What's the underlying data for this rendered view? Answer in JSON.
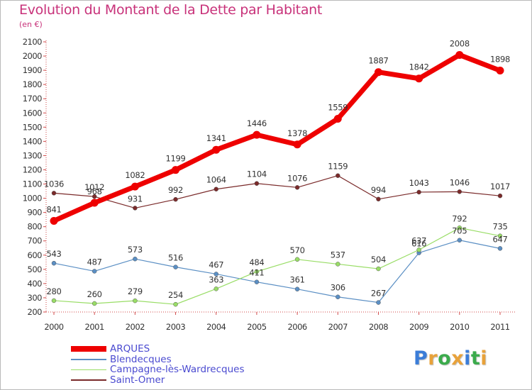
{
  "title": "Evolution du Montant de la Dette par Habitant",
  "subtitle": "(en €)",
  "logo": {
    "text": "Proxiti",
    "letters": [
      "P",
      "r",
      "o",
      "x",
      "i",
      "t",
      "i"
    ],
    "colors": [
      "#3b7dd8",
      "#e8a23a",
      "#3bab4c",
      "#e8a23a",
      "#3b7dd8",
      "#3bab4c",
      "#e8a23a"
    ]
  },
  "chart_data": {
    "type": "line",
    "x": [
      "2000",
      "2001",
      "2002",
      "2003",
      "2004",
      "2005",
      "2006",
      "2007",
      "2008",
      "2009",
      "2010",
      "2011"
    ],
    "ylim": [
      200,
      2100
    ],
    "yticks": [
      "200",
      "300",
      "400",
      "500",
      "600",
      "700",
      "800",
      "900",
      "1000",
      "1100",
      "1200",
      "1300",
      "1400",
      "1500",
      "1600",
      "1700",
      "1800",
      "1900",
      "2000",
      "2100"
    ],
    "grid": false,
    "legend_position": "bottom-left",
    "series": [
      {
        "name": "Saint-Omer",
        "color": "#7a2a2a",
        "values": [
          1036,
          1012,
          931,
          992,
          1064,
          1104,
          1076,
          1159,
          994,
          1043,
          1046,
          1017
        ]
      },
      {
        "name": "Blendecques",
        "color": "#5b8fc4",
        "values": [
          543,
          487,
          573,
          516,
          467,
          411,
          361,
          306,
          267,
          616,
          705,
          647
        ]
      },
      {
        "name": "Campagne-lès-Wardrecques",
        "color": "#99dd66",
        "values": [
          280,
          260,
          279,
          254,
          363,
          484,
          570,
          537,
          504,
          637,
          792,
          735
        ]
      },
      {
        "name": "ARQUES",
        "color": "#ee0000",
        "values": [
          841,
          968,
          1082,
          1199,
          1341,
          1446,
          1378,
          1559,
          1887,
          1842,
          2008,
          1898
        ]
      }
    ]
  },
  "legend": [
    {
      "label": "ARQUES",
      "color": "#ee0000",
      "thick": true
    },
    {
      "label": "Blendecques",
      "color": "#5b8fc4",
      "thick": false
    },
    {
      "label": "Campagne-lès-Wardrecques",
      "color": "#99dd66",
      "thick": false
    },
    {
      "label": "Saint-Omer",
      "color": "#7a2a2a",
      "thick": false
    }
  ]
}
